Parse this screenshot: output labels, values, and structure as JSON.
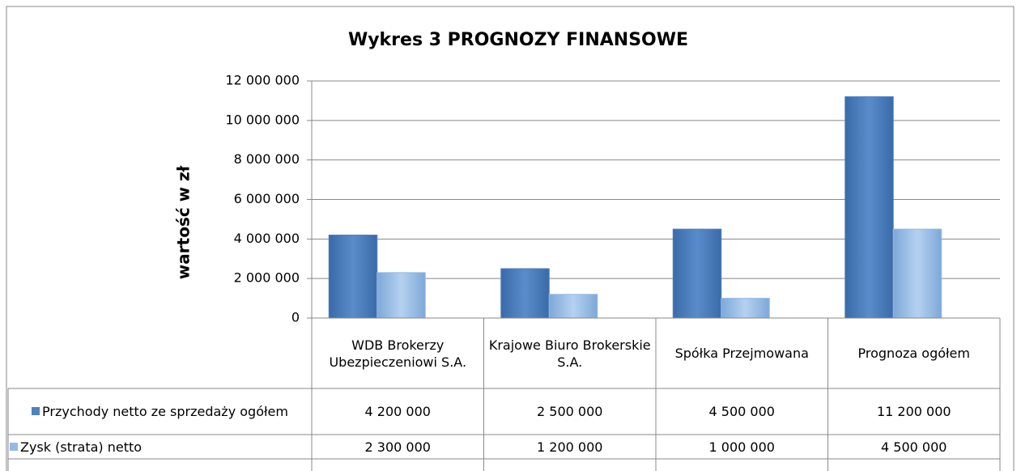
{
  "chart_data": {
    "type": "bar",
    "title": "Wykres 3 PROGNOZY FINANSOWE",
    "y_label": "wartość w zł",
    "categories": [
      "WDB Brokerzy Ubezpieczeniowi S.A.",
      "Krajowe Biuro Brokerskie S.A.",
      "Spółka Przejmowana",
      "Prognoza ogółem"
    ],
    "series": [
      {
        "name": "Przychody netto ze sprzedaży ogółem",
        "color": "#4f81bd",
        "values": [
          4200000,
          2500000,
          4500000,
          11200000
        ],
        "value_labels": [
          "4 200 000",
          "2 500 000",
          "4 500 000",
          "11 200 000"
        ]
      },
      {
        "name": "Zysk (strata) netto",
        "color": "#95b9e4",
        "values": [
          2300000,
          1200000,
          1000000,
          4500000
        ],
        "value_labels": [
          "2 300 000",
          "1 200 000",
          "1 000 000",
          "4 500 000"
        ]
      }
    ],
    "ylim": [
      0,
      12000000
    ],
    "yticks": [
      0,
      {
        "value": 2000000,
        "label": "2 000 000"
      },
      {
        "value": 4000000,
        "label": "4 000 000"
      },
      {
        "value": 6000000,
        "label": "6 000 000"
      },
      {
        "value": 8000000,
        "label": "8 000 000"
      },
      {
        "value": 10000000,
        "label": "10 000 000"
      },
      {
        "value": 12000000,
        "label": "12 000 000"
      }
    ],
    "grid": true
  }
}
